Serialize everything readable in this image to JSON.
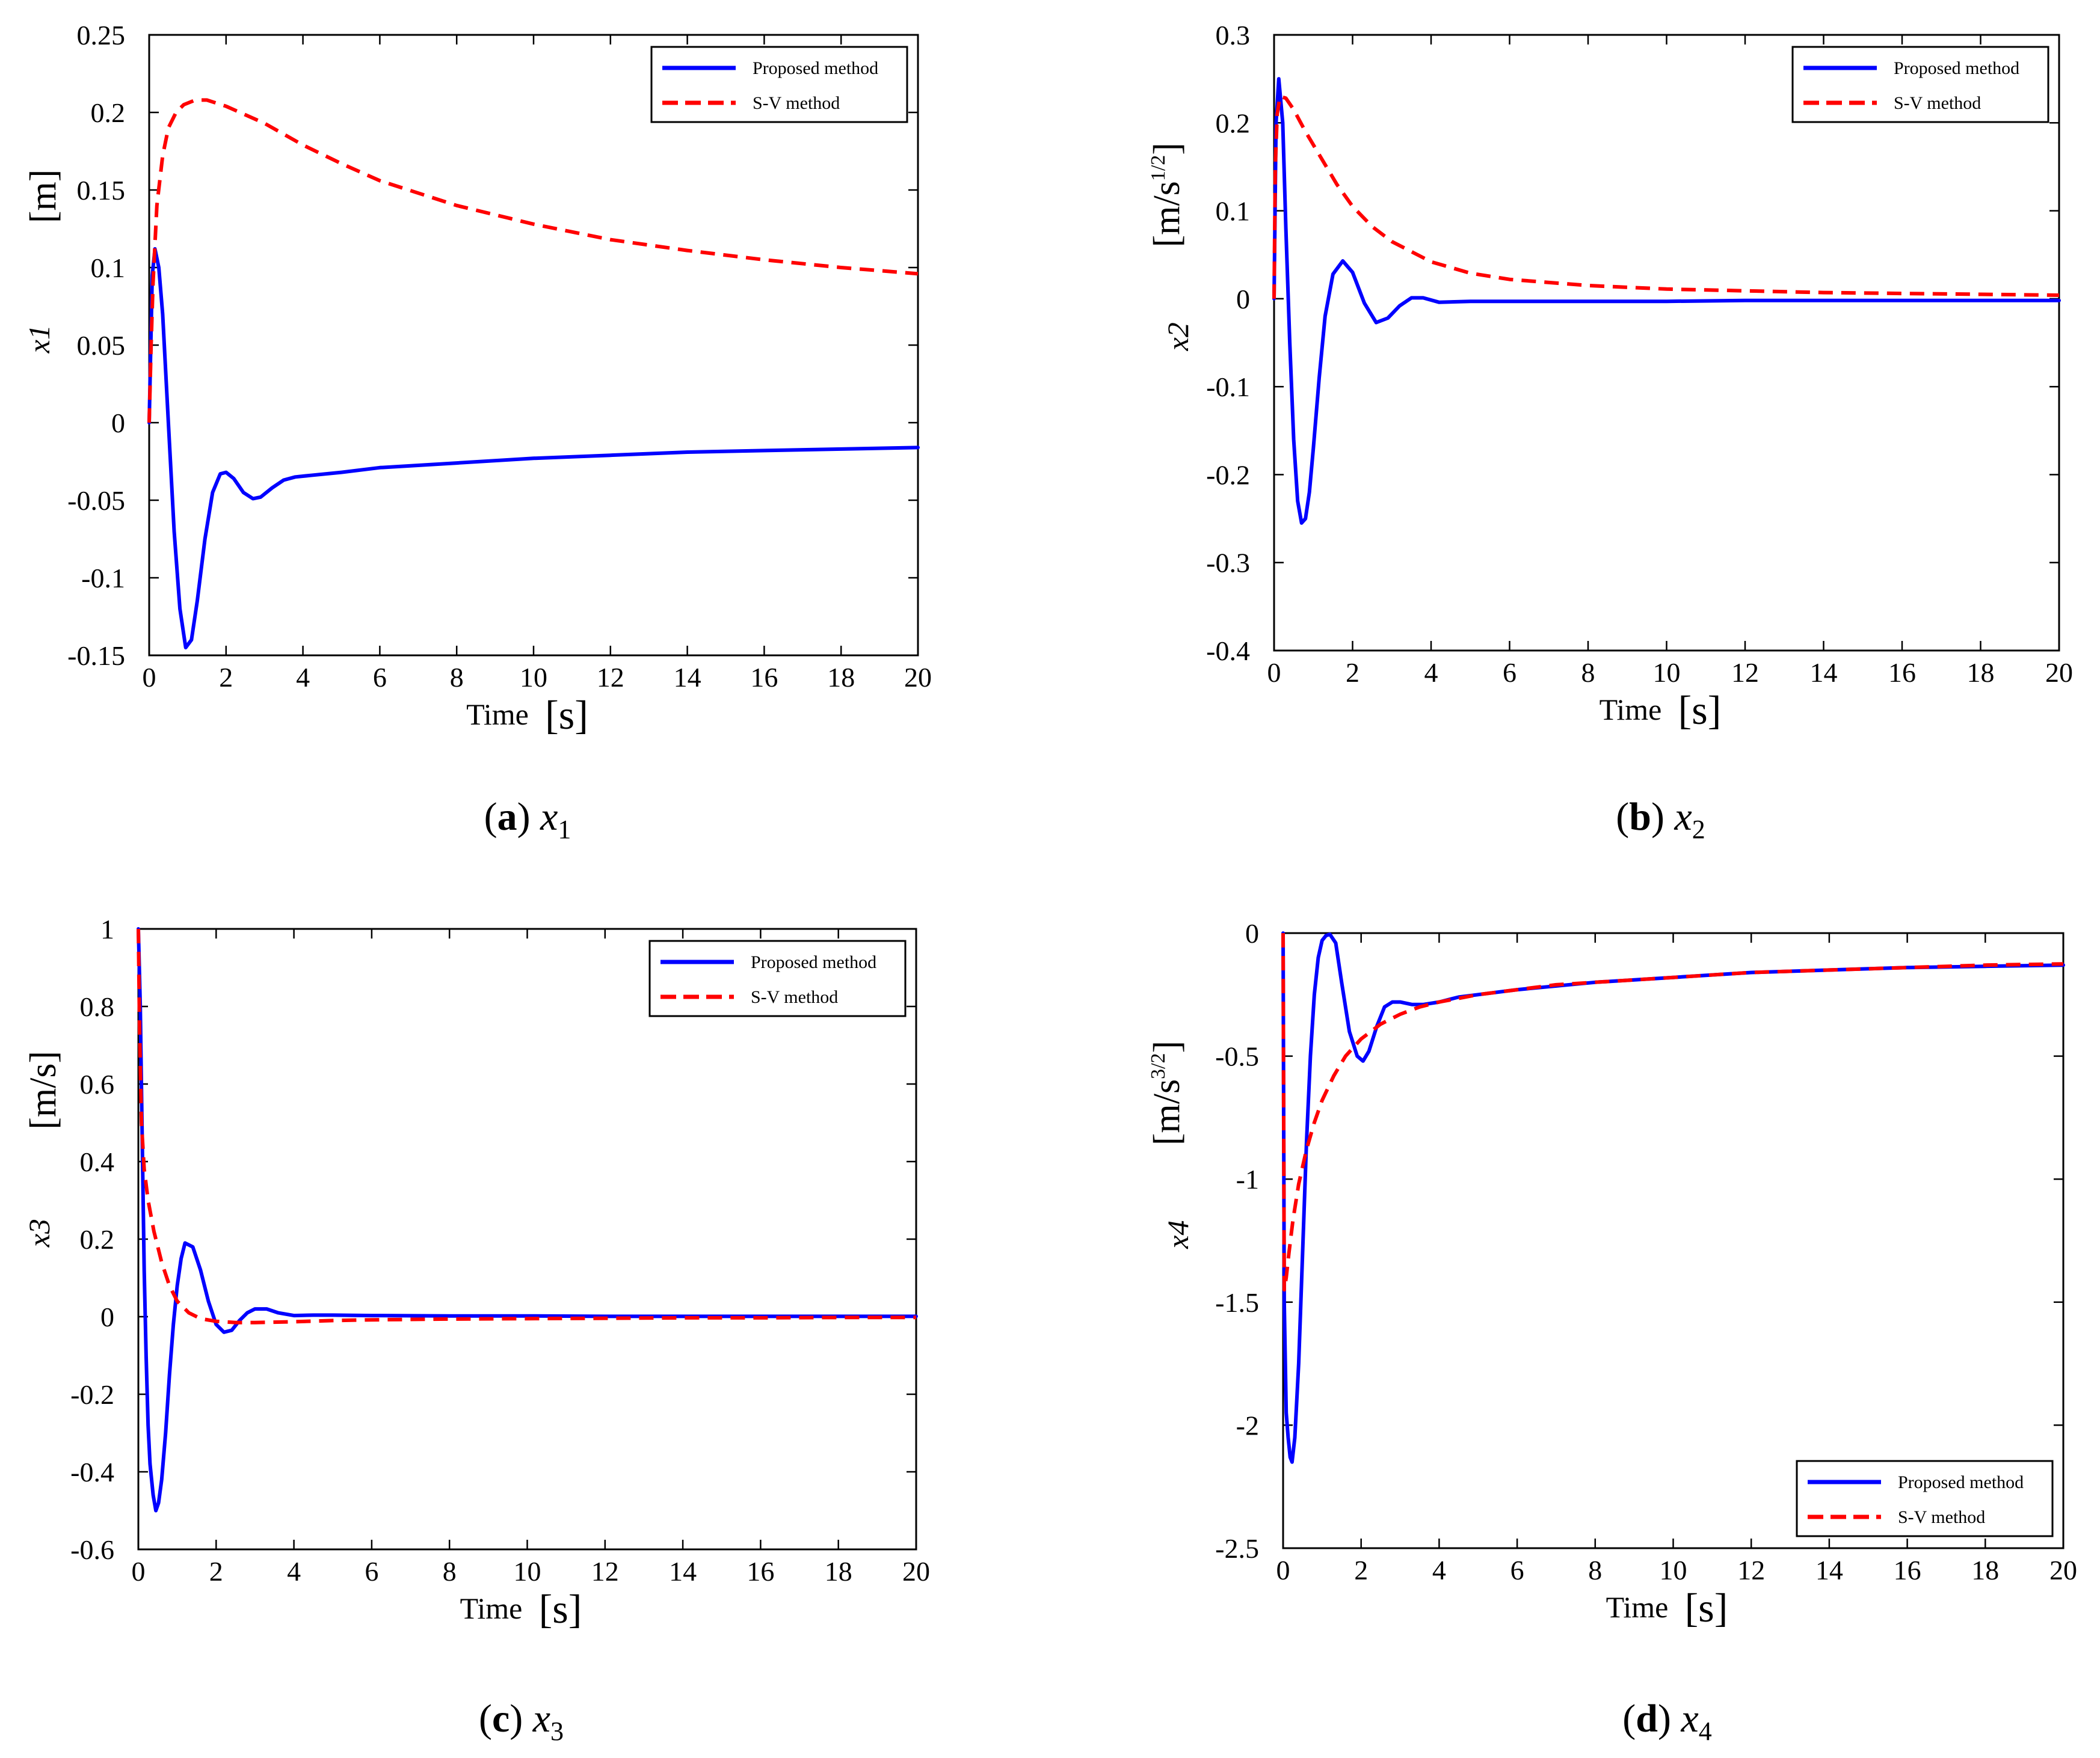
{
  "colors": {
    "proposed": "#0000ff",
    "sv": "#ff0000"
  },
  "chart_data": [
    {
      "type": "line",
      "id": "a",
      "caption": {
        "letter": "a",
        "var": "x",
        "sub": "1"
      },
      "xlabel": "Time",
      "xunit": "[s]",
      "ylabel": "x1",
      "yunit": "[m]",
      "yunit_sup": "",
      "xlim": [
        0,
        20
      ],
      "ylim": [
        -0.15,
        0.25
      ],
      "xticks": [
        "0",
        "2",
        "4",
        "6",
        "8",
        "10",
        "12",
        "14",
        "16",
        "18",
        "20"
      ],
      "yticks": [
        "-0.15",
        "-0.1",
        "-0.05",
        "0",
        "0.05",
        "0.1",
        "0.15",
        "0.2",
        "0.25"
      ],
      "legend": {
        "position": "top-right",
        "entries": [
          "Proposed method",
          "S-V method"
        ]
      },
      "series": [
        {
          "name": "Proposed method",
          "style": "solid",
          "x": [
            0,
            0.08,
            0.15,
            0.25,
            0.35,
            0.5,
            0.65,
            0.8,
            0.95,
            1.1,
            1.25,
            1.45,
            1.65,
            1.85,
            2.0,
            2.2,
            2.45,
            2.7,
            2.9,
            3.2,
            3.5,
            3.8,
            4.2,
            5,
            6,
            8,
            10,
            12,
            14,
            16,
            18,
            20
          ],
          "y": [
            0,
            0.095,
            0.112,
            0.1,
            0.07,
            0.0,
            -0.07,
            -0.12,
            -0.145,
            -0.14,
            -0.115,
            -0.075,
            -0.045,
            -0.033,
            -0.032,
            -0.036,
            -0.045,
            -0.049,
            -0.048,
            -0.042,
            -0.037,
            -0.035,
            -0.034,
            -0.032,
            -0.029,
            -0.026,
            -0.023,
            -0.021,
            -0.019,
            -0.018,
            -0.017,
            -0.016
          ]
        },
        {
          "name": "S-V method",
          "style": "dashed",
          "x": [
            0,
            0.05,
            0.1,
            0.2,
            0.35,
            0.5,
            0.7,
            0.9,
            1.2,
            1.5,
            2,
            3,
            4,
            5,
            6,
            8,
            10,
            12,
            14,
            16,
            18,
            20
          ],
          "y": [
            0,
            0.05,
            0.09,
            0.14,
            0.172,
            0.19,
            0.2,
            0.205,
            0.208,
            0.208,
            0.204,
            0.193,
            0.179,
            0.167,
            0.156,
            0.14,
            0.128,
            0.118,
            0.111,
            0.105,
            0.1,
            0.096
          ]
        }
      ]
    },
    {
      "type": "line",
      "id": "b",
      "caption": {
        "letter": "b",
        "var": "x",
        "sub": "2"
      },
      "xlabel": "Time",
      "xunit": "[s]",
      "ylabel": "x2",
      "yunit": "[m/s",
      "yunit_sup": "1/2",
      "xlim": [
        0,
        20
      ],
      "ylim": [
        -0.4,
        0.3
      ],
      "xticks": [
        "0",
        "2",
        "4",
        "6",
        "8",
        "10",
        "12",
        "14",
        "16",
        "18",
        "20"
      ],
      "yticks": [
        "-0.4",
        "-0.3",
        "-0.2",
        "-0.1",
        "0",
        "0.1",
        "0.2",
        "0.3"
      ],
      "legend": {
        "position": "top-right",
        "entries": [
          "Proposed method",
          "S-V method"
        ]
      },
      "series": [
        {
          "name": "Proposed method",
          "style": "solid",
          "x": [
            0,
            0.05,
            0.12,
            0.22,
            0.3,
            0.4,
            0.5,
            0.6,
            0.7,
            0.8,
            0.9,
            1.0,
            1.15,
            1.3,
            1.5,
            1.75,
            2.0,
            2.3,
            2.6,
            2.9,
            3.2,
            3.5,
            3.8,
            4.2,
            5,
            6,
            8,
            10,
            12,
            14,
            16,
            18,
            20
          ],
          "y": [
            0,
            0.2,
            0.25,
            0.2,
            0.08,
            -0.05,
            -0.16,
            -0.23,
            -0.255,
            -0.25,
            -0.22,
            -0.17,
            -0.09,
            -0.02,
            0.028,
            0.043,
            0.03,
            -0.005,
            -0.027,
            -0.022,
            -0.008,
            0.001,
            0.001,
            -0.004,
            -0.003,
            -0.003,
            -0.003,
            -0.003,
            -0.002,
            -0.002,
            -0.002,
            -0.002,
            -0.002
          ]
        },
        {
          "name": "S-V method",
          "style": "dashed",
          "x": [
            0,
            0.03,
            0.08,
            0.15,
            0.3,
            0.5,
            0.8,
            1.2,
            1.6,
            2,
            2.5,
            3,
            4,
            5,
            6,
            8,
            10,
            12,
            14,
            16,
            18,
            20
          ],
          "y": [
            0,
            0.15,
            0.21,
            0.23,
            0.228,
            0.215,
            0.19,
            0.16,
            0.13,
            0.105,
            0.082,
            0.065,
            0.042,
            0.029,
            0.022,
            0.015,
            0.011,
            0.009,
            0.007,
            0.006,
            0.005,
            0.004
          ]
        }
      ]
    },
    {
      "type": "line",
      "id": "c",
      "caption": {
        "letter": "c",
        "var": "x",
        "sub": "3"
      },
      "xlabel": "Time",
      "xunit": "[s]",
      "ylabel": "x3",
      "yunit": "[m/s]",
      "yunit_sup": "",
      "xlim": [
        0,
        20
      ],
      "ylim": [
        -0.6,
        1
      ],
      "xticks": [
        "0",
        "2",
        "4",
        "6",
        "8",
        "10",
        "12",
        "14",
        "16",
        "18",
        "20"
      ],
      "yticks": [
        "-0.6",
        "-0.4",
        "-0.2",
        "0",
        "0.2",
        "0.4",
        "0.6",
        "0.8",
        "1"
      ],
      "legend": {
        "position": "top-right",
        "entries": [
          "Proposed method",
          "S-V method"
        ]
      },
      "series": [
        {
          "name": "Proposed method",
          "style": "solid",
          "x": [
            0,
            0.05,
            0.1,
            0.15,
            0.2,
            0.25,
            0.3,
            0.38,
            0.45,
            0.52,
            0.6,
            0.7,
            0.8,
            0.9,
            1.0,
            1.1,
            1.2,
            1.4,
            1.6,
            1.8,
            2.0,
            2.2,
            2.4,
            2.6,
            2.8,
            3.0,
            3.3,
            3.6,
            4.0,
            4.5,
            5,
            6,
            8,
            10,
            12,
            14,
            16,
            18,
            20
          ],
          "y": [
            1,
            0.8,
            0.45,
            0.12,
            -0.1,
            -0.28,
            -0.38,
            -0.46,
            -0.5,
            -0.48,
            -0.42,
            -0.3,
            -0.15,
            -0.02,
            0.08,
            0.15,
            0.19,
            0.18,
            0.12,
            0.04,
            -0.02,
            -0.04,
            -0.035,
            -0.01,
            0.01,
            0.02,
            0.02,
            0.01,
            0.003,
            0.004,
            0.004,
            0.003,
            0.002,
            0.002,
            0.001,
            0.001,
            0.001,
            0.001,
            0.001
          ]
        },
        {
          "name": "S-V method",
          "style": "dashed",
          "x": [
            0,
            0.03,
            0.08,
            0.15,
            0.25,
            0.4,
            0.6,
            0.8,
            1.0,
            1.3,
            1.6,
            2,
            2.5,
            3,
            4,
            5,
            6,
            8,
            10,
            12,
            14,
            16,
            18,
            20
          ],
          "y": [
            1,
            0.75,
            0.5,
            0.38,
            0.3,
            0.22,
            0.14,
            0.08,
            0.04,
            0.01,
            -0.005,
            -0.012,
            -0.015,
            -0.015,
            -0.013,
            -0.01,
            -0.008,
            -0.006,
            -0.005,
            -0.004,
            -0.003,
            -0.003,
            -0.002,
            -0.002
          ]
        }
      ]
    },
    {
      "type": "line",
      "id": "d",
      "caption": {
        "letter": "d",
        "var": "x",
        "sub": "4"
      },
      "xlabel": "Time",
      "xunit": "[s]",
      "ylabel": "x4",
      "yunit": "[m/s",
      "yunit_sup": "3/2",
      "xlim": [
        0,
        20
      ],
      "ylim": [
        -2.5,
        0
      ],
      "xticks": [
        "0",
        "2",
        "4",
        "6",
        "8",
        "10",
        "12",
        "14",
        "16",
        "18",
        "20"
      ],
      "yticks": [
        "-2.5",
        "-2",
        "-1.5",
        "-1",
        "-0.5",
        "0"
      ],
      "legend": {
        "position": "bottom-right",
        "entries": [
          "Proposed method",
          "S-V method"
        ]
      },
      "series": [
        {
          "name": "Proposed method",
          "style": "solid",
          "x": [
            0,
            0.03,
            0.08,
            0.13,
            0.18,
            0.23,
            0.3,
            0.4,
            0.5,
            0.6,
            0.7,
            0.8,
            0.9,
            1.0,
            1.1,
            1.2,
            1.35,
            1.5,
            1.7,
            1.9,
            2.05,
            2.2,
            2.4,
            2.6,
            2.8,
            3.0,
            3.3,
            3.6,
            4.0,
            4.5,
            5,
            6,
            8,
            10,
            12,
            14,
            16,
            18,
            20
          ],
          "y": [
            0,
            -1.5,
            -1.95,
            -2.05,
            -2.13,
            -2.15,
            -2.05,
            -1.75,
            -1.3,
            -0.85,
            -0.5,
            -0.25,
            -0.1,
            -0.03,
            -0.01,
            -0.005,
            -0.04,
            -0.2,
            -0.4,
            -0.5,
            -0.52,
            -0.48,
            -0.38,
            -0.3,
            -0.28,
            -0.28,
            -0.29,
            -0.29,
            -0.28,
            -0.26,
            -0.25,
            -0.23,
            -0.2,
            -0.18,
            -0.16,
            -0.15,
            -0.14,
            -0.135,
            -0.13
          ]
        },
        {
          "name": "S-V method",
          "style": "dashed",
          "x": [
            0,
            0.03,
            0.08,
            0.15,
            0.25,
            0.4,
            0.6,
            0.8,
            1.0,
            1.3,
            1.6,
            2.0,
            2.5,
            3,
            3.5,
            4,
            5,
            6,
            7,
            8,
            10,
            12,
            14,
            16,
            18,
            20
          ],
          "y": [
            0,
            -1.45,
            -1.4,
            -1.3,
            -1.17,
            -1.02,
            -0.88,
            -0.77,
            -0.68,
            -0.58,
            -0.5,
            -0.43,
            -0.37,
            -0.33,
            -0.3,
            -0.28,
            -0.25,
            -0.23,
            -0.21,
            -0.2,
            -0.18,
            -0.16,
            -0.15,
            -0.14,
            -0.13,
            -0.125
          ]
        }
      ]
    }
  ]
}
